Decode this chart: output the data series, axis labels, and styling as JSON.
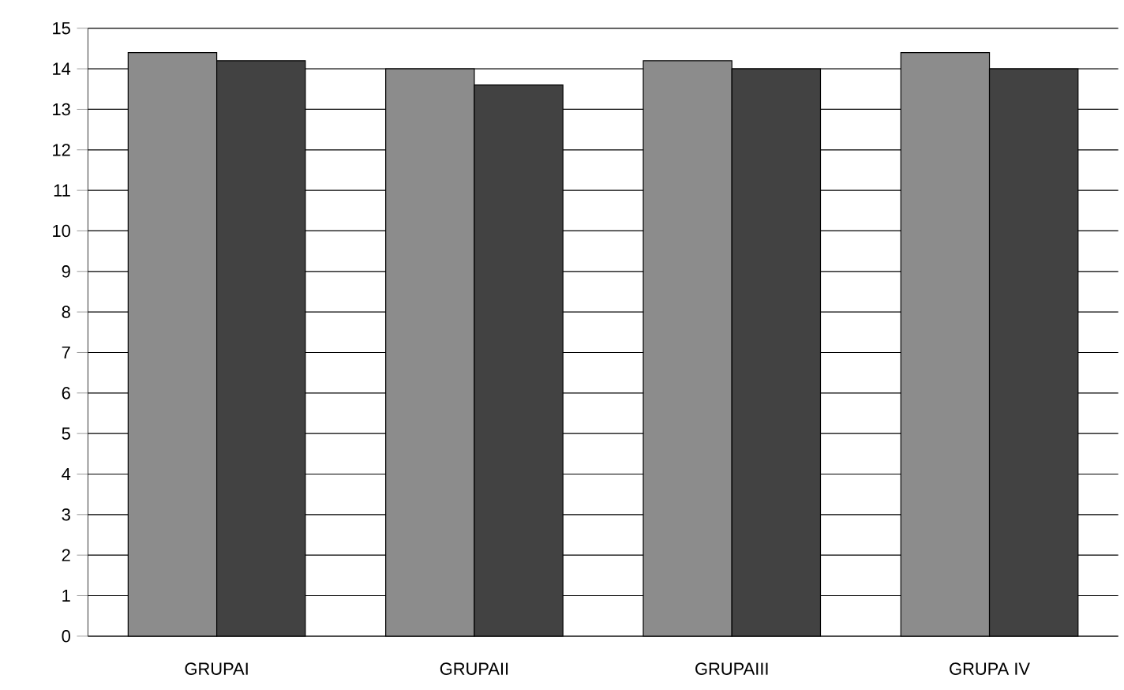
{
  "chart_data": {
    "type": "bar",
    "categories": [
      "GRUPAI",
      "GRUPAII",
      "GRUPAIII",
      "GRUPA IV"
    ],
    "series": [
      {
        "color": "#8c8c8c",
        "values": [
          14.4,
          14.0,
          14.2,
          14.4
        ]
      },
      {
        "color": "#424242",
        "values": [
          14.2,
          13.6,
          14.0,
          14.0
        ]
      }
    ],
    "ylim": [
      0,
      15
    ],
    "yticks": [
      0,
      1,
      2,
      3,
      4,
      5,
      6,
      7,
      8,
      9,
      10,
      11,
      12,
      13,
      14,
      15
    ],
    "grid": "y"
  }
}
